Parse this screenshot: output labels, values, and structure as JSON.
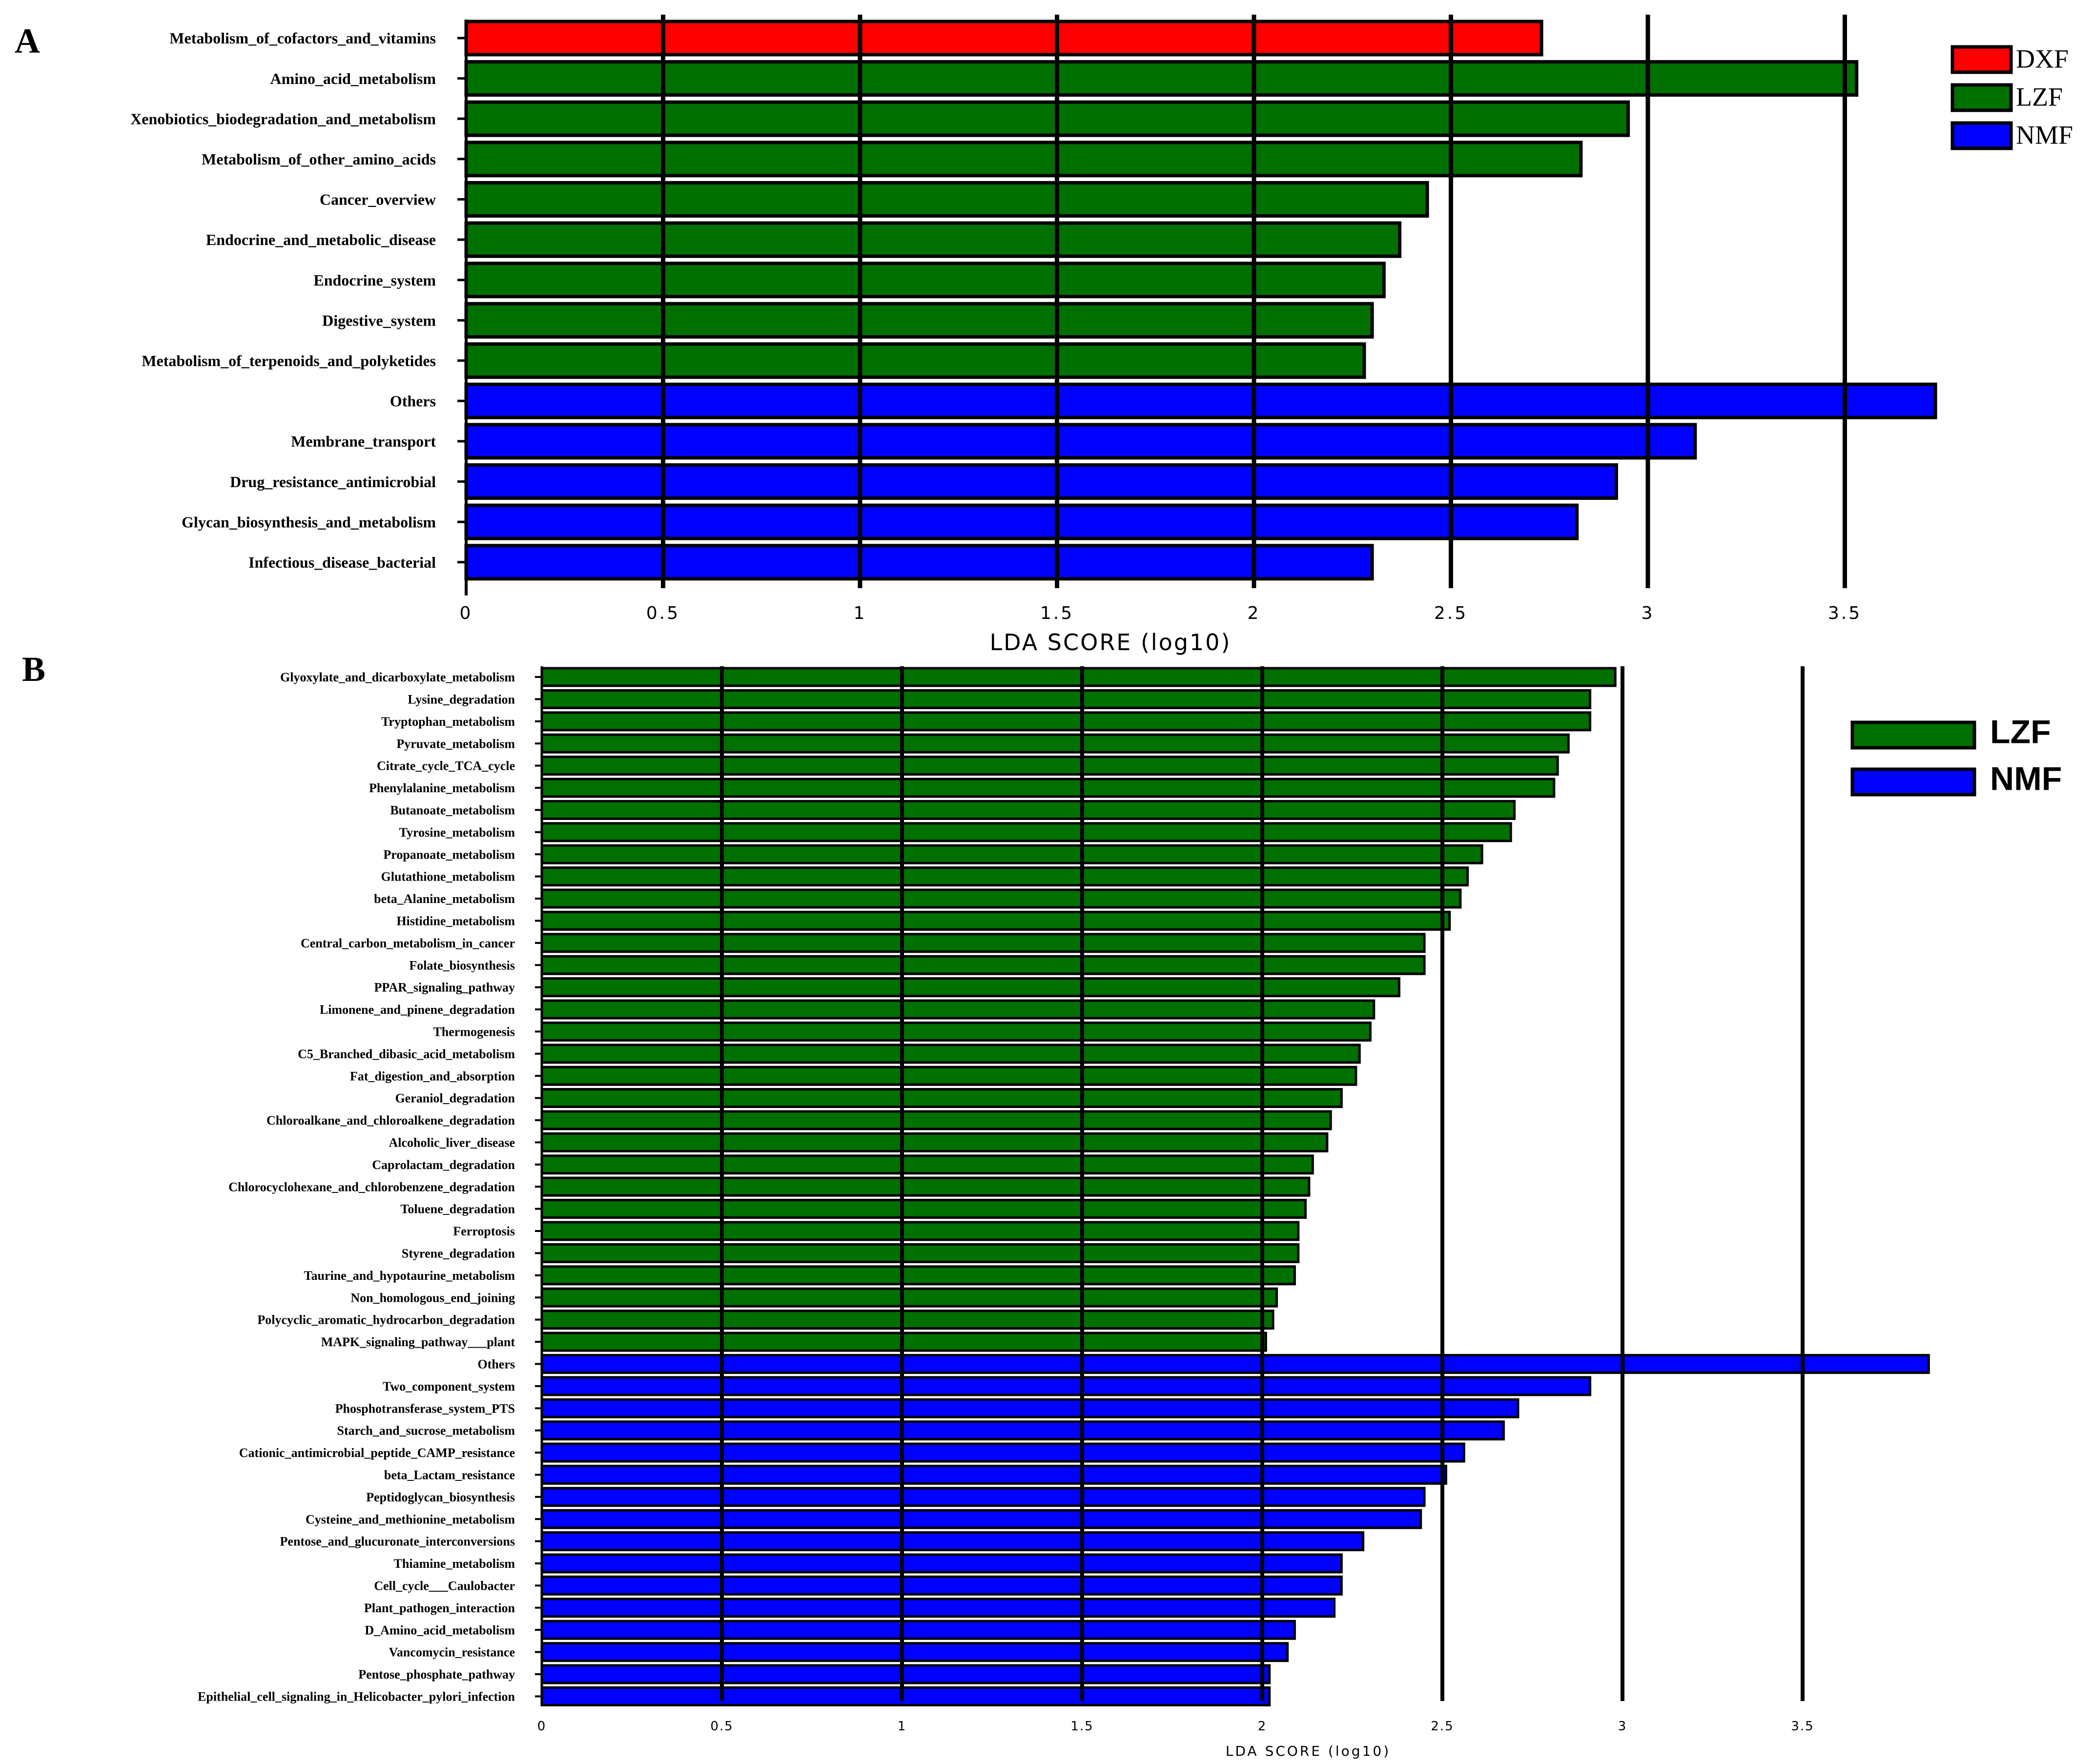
{
  "colors": {
    "DXF": "#ff0000",
    "LZF": "#007000",
    "NMF": "#0000ff"
  },
  "chart_data": [
    {
      "panel": "A",
      "type": "bar",
      "orientation": "horizontal",
      "xlabel": "LDA SCORE (log10)",
      "xlim": [
        0,
        3.8
      ],
      "xticks": [
        "0",
        "0.5",
        "1",
        "1.5",
        "2",
        "2.5",
        "3",
        "3.5"
      ],
      "legend_position": "top-right",
      "legend": [
        "DXF",
        "LZF",
        "NMF"
      ],
      "categories": [
        "Metabolism_of_cofactors_and_vitamins",
        "Amino_acid_metabolism",
        "Xenobiotics_biodegradation_and_metabolism",
        "Metabolism_of_other_amino_acids",
        "Cancer_overview",
        "Endocrine_and_metabolic_disease",
        "Endocrine_system",
        "Digestive_system",
        "Metabolism_of_terpenoids_and_polyketides",
        "Others",
        "Membrane_transport",
        "Drug_resistance_antimicrobial",
        "Glycan_biosynthesis_and_metabolism",
        "Infectious_disease_bacterial"
      ],
      "values": [
        2.73,
        3.53,
        2.95,
        2.83,
        2.44,
        2.37,
        2.33,
        2.3,
        2.28,
        3.73,
        3.12,
        2.92,
        2.82,
        2.3
      ],
      "groups": [
        "DXF",
        "LZF",
        "LZF",
        "LZF",
        "LZF",
        "LZF",
        "LZF",
        "LZF",
        "LZF",
        "NMF",
        "NMF",
        "NMF",
        "NMF",
        "NMF"
      ]
    },
    {
      "panel": "B",
      "type": "bar",
      "orientation": "horizontal",
      "xlabel": "LDA SCORE (log10)",
      "xlim": [
        0,
        4.0
      ],
      "xticks": [
        "0",
        "0.5",
        "1",
        "1.5",
        "2",
        "2.5",
        "3",
        "3.5"
      ],
      "legend_position": "top-right",
      "legend": [
        "LZF",
        "NMF"
      ],
      "categories": [
        "Glyoxylate_and_dicarboxylate_metabolism",
        "Lysine_degradation",
        "Tryptophan_metabolism",
        "Pyruvate_metabolism",
        "Citrate_cycle_TCA_cycle",
        "Phenylalanine_metabolism",
        "Butanoate_metabolism",
        "Tyrosine_metabolism",
        "Propanoate_metabolism",
        "Glutathione_metabolism",
        "beta_Alanine_metabolism",
        "Histidine_metabolism",
        "Central_carbon_metabolism_in_cancer",
        "Folate_biosynthesis",
        "PPAR_signaling_pathway",
        "Limonene_and_pinene_degradation",
        "Thermogenesis",
        "C5_Branched_dibasic_acid_metabolism",
        "Fat_digestion_and_absorption",
        "Geraniol_degradation",
        "Chloroalkane_and_chloroalkene_degradation",
        "Alcoholic_liver_disease",
        "Caprolactam_degradation",
        "Chlorocyclohexane_and_chlorobenzene_degradation",
        "Toluene_degradation",
        "Ferroptosis",
        "Styrene_degradation",
        "Taurine_and_hypotaurine_metabolism",
        "Non_homologous_end_joining",
        "Polycyclic_aromatic_hydrocarbon_degradation",
        "MAPK_signaling_pathway___plant",
        "Others",
        "Two_component_system",
        "Phosphotransferase_system_PTS",
        "Starch_and_sucrose_metabolism",
        "Cationic_antimicrobial_peptide_CAMP_resistance",
        "beta_Lactam_resistance",
        "Peptidoglycan_biosynthesis",
        "Cysteine_and_methionine_metabolism",
        "Pentose_and_glucuronate_interconversions",
        "Thiamine_metabolism",
        "Cell_cycle___Caulobacter",
        "Plant_pathogen_interaction",
        "D_Amino_acid_metabolism",
        "Vancomycin_resistance",
        "Pentose_phosphate_pathway",
        "Epithelial_cell_signaling_in_Helicobacter_pylori_infection"
      ],
      "values": [
        2.98,
        2.91,
        2.91,
        2.85,
        2.82,
        2.81,
        2.7,
        2.69,
        2.61,
        2.57,
        2.55,
        2.52,
        2.45,
        2.45,
        2.38,
        2.31,
        2.3,
        2.27,
        2.26,
        2.22,
        2.19,
        2.18,
        2.14,
        2.13,
        2.12,
        2.1,
        2.1,
        2.09,
        2.04,
        2.03,
        2.01,
        3.85,
        2.91,
        2.71,
        2.67,
        2.56,
        2.51,
        2.45,
        2.44,
        2.28,
        2.22,
        2.22,
        2.2,
        2.09,
        2.07,
        2.02,
        2.02
      ],
      "groups": [
        "LZF",
        "LZF",
        "LZF",
        "LZF",
        "LZF",
        "LZF",
        "LZF",
        "LZF",
        "LZF",
        "LZF",
        "LZF",
        "LZF",
        "LZF",
        "LZF",
        "LZF",
        "LZF",
        "LZF",
        "LZF",
        "LZF",
        "LZF",
        "LZF",
        "LZF",
        "LZF",
        "LZF",
        "LZF",
        "LZF",
        "LZF",
        "LZF",
        "LZF",
        "LZF",
        "LZF",
        "NMF",
        "NMF",
        "NMF",
        "NMF",
        "NMF",
        "NMF",
        "NMF",
        "NMF",
        "NMF",
        "NMF",
        "NMF",
        "NMF",
        "NMF",
        "NMF",
        "NMF",
        "NMF"
      ]
    }
  ]
}
